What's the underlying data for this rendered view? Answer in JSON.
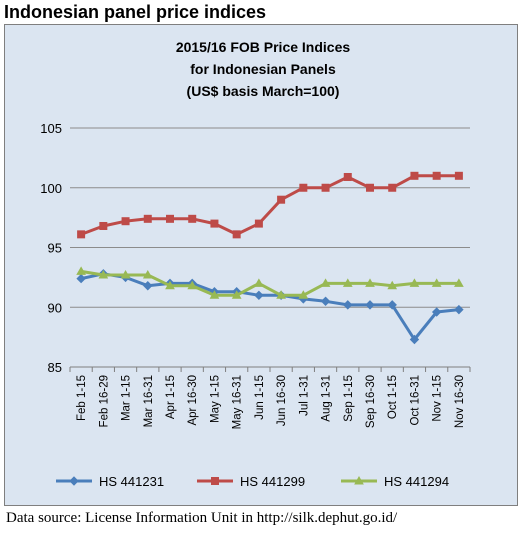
{
  "header": {
    "title": "Indonesian panel price indices"
  },
  "footer": {
    "source": "Data source: License Information Unit in http://silk.dephut.go.id/"
  },
  "chart_data": {
    "type": "line",
    "title_lines": [
      "2015/16 FOB Price Indices",
      "for Indonesian Panels",
      "(US$ basis March=100)"
    ],
    "xlabel": "",
    "ylabel": "",
    "ylim": [
      85,
      105
    ],
    "yticks": [
      85,
      90,
      95,
      100,
      105
    ],
    "grid": "horizontal",
    "legend_position": "bottom",
    "categories": [
      "Feb 1-15",
      "Feb 16-29",
      "Mar 1-15",
      "Mar 16-31",
      "Apr 1-15",
      "Apr 16-30",
      "May 1-15",
      "May 16-31",
      "Jun 1-15",
      "Jun 16-30",
      "Jul 1-31",
      "Aug 1-31",
      "Sep 1-15",
      "Sep 16-30",
      "Oct 1-15",
      "Oct 16-31",
      "Nov 1-15",
      "Nov 16-30"
    ],
    "series": [
      {
        "name": "HS 441231",
        "color": "#4a7ebb",
        "marker": "diamond",
        "values": [
          92.4,
          92.8,
          92.5,
          91.8,
          92.0,
          92.0,
          91.3,
          91.3,
          91.0,
          91.0,
          90.7,
          90.5,
          90.2,
          90.2,
          90.2,
          87.3,
          89.6,
          89.8
        ]
      },
      {
        "name": "HS 441299",
        "color": "#be4b48",
        "marker": "square",
        "values": [
          96.1,
          96.8,
          97.2,
          97.4,
          97.4,
          97.4,
          97.0,
          96.1,
          97.0,
          99.0,
          100.0,
          100.0,
          100.9,
          100.0,
          100.0,
          101.0,
          101.0,
          101.0
        ]
      },
      {
        "name": "HS 441294",
        "color": "#98b954",
        "marker": "triangle",
        "values": [
          93.0,
          92.7,
          92.7,
          92.7,
          91.8,
          91.8,
          91.0,
          91.0,
          92.0,
          91.0,
          91.0,
          92.0,
          92.0,
          92.0,
          91.8,
          92.0,
          92.0,
          92.0
        ]
      }
    ]
  }
}
